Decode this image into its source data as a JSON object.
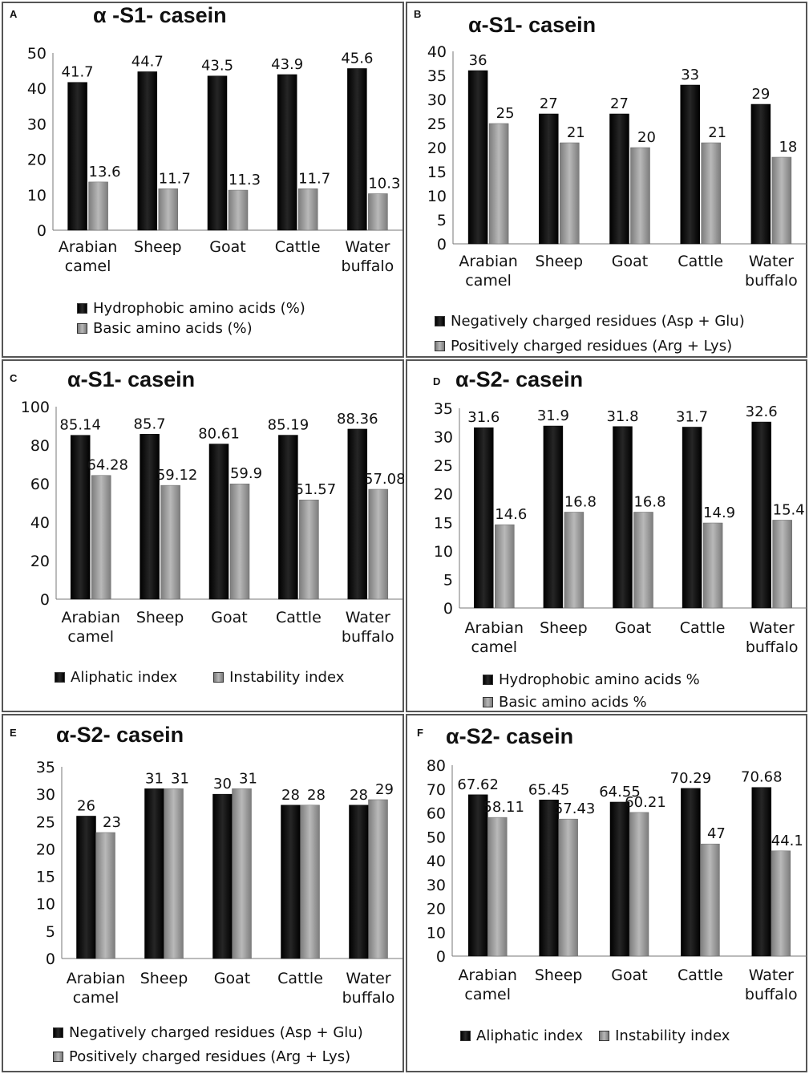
{
  "charts": [
    {
      "letter": "A",
      "title": "α -S1- casein"
    },
    {
      "letter": "B",
      "title": "α-S1- casein"
    },
    {
      "letter": "C",
      "title": "α-S1- casein"
    },
    {
      "letter": "D",
      "title": "α-S2- casein"
    },
    {
      "letter": "E",
      "title": "α-S2- casein"
    },
    {
      "letter": "F",
      "title": "α-S2- casein"
    }
  ],
  "colors": {
    "series1": "#0a0a0a",
    "series2": "#a6a6a6"
  },
  "chart_data": [
    {
      "type": "bar",
      "title": "α -S1- casein",
      "categories": [
        [
          "Arabian",
          "camel"
        ],
        [
          "Sheep"
        ],
        [
          "Goat"
        ],
        [
          "Cattle"
        ],
        [
          "Water",
          "buffalo"
        ]
      ],
      "series": [
        {
          "name": "Hydrophobic amino acids (%)",
          "values": [
            41.7,
            44.7,
            43.5,
            43.9,
            45.6
          ],
          "labels": [
            "41.7",
            "44.7",
            "43.5",
            "43.9",
            "45.6"
          ]
        },
        {
          "name": "Basic amino acids (%)",
          "values": [
            13.6,
            11.7,
            11.3,
            11.7,
            10.3
          ],
          "labels": [
            "13.6",
            "11.7",
            "11.3",
            "11.7",
            "10.3"
          ]
        }
      ],
      "ylim": [
        0,
        50
      ],
      "yticks": [
        0,
        10,
        20,
        30,
        40,
        50
      ]
    },
    {
      "type": "bar",
      "title": "α-S1- casein",
      "categories": [
        [
          "Arabian",
          "camel"
        ],
        [
          "Sheep"
        ],
        [
          "Goat"
        ],
        [
          "Cattle"
        ],
        [
          "Water",
          "buffalo"
        ]
      ],
      "series": [
        {
          "name": "Negatively charged residues  (Asp + Glu)",
          "values": [
            36,
            27,
            27,
            33,
            29
          ],
          "labels": [
            "36",
            "27",
            "27",
            "33",
            "29"
          ]
        },
        {
          "name": "Positively charged residues  (Arg + Lys)",
          "values": [
            25,
            21,
            20,
            21,
            18
          ],
          "labels": [
            "25",
            "21",
            "20",
            "21",
            "18"
          ]
        }
      ],
      "ylim": [
        0,
        40
      ],
      "yticks": [
        0,
        5,
        10,
        15,
        20,
        25,
        30,
        35,
        40
      ]
    },
    {
      "type": "bar",
      "title": "α-S1- casein",
      "categories": [
        [
          "Arabian",
          "camel"
        ],
        [
          "Sheep"
        ],
        [
          "Goat"
        ],
        [
          "Cattle"
        ],
        [
          "Water",
          "buffalo"
        ]
      ],
      "series": [
        {
          "name": "Aliphatic index",
          "values": [
            85.14,
            85.7,
            80.61,
            85.19,
            88.36
          ],
          "labels": [
            "85.14",
            "85.7",
            "80.61",
            "85.19",
            "88.36"
          ]
        },
        {
          "name": "Instability index",
          "values": [
            64.28,
            59.12,
            59.9,
            51.57,
            57.08
          ],
          "labels": [
            "64.28",
            "59.12",
            "59.9",
            "51.57",
            "57.08"
          ]
        }
      ],
      "ylim": [
        0,
        100
      ],
      "yticks": [
        0,
        20,
        40,
        60,
        80,
        100
      ]
    },
    {
      "type": "bar",
      "title": "α-S2- casein",
      "categories": [
        [
          "Arabian",
          "camel"
        ],
        [
          "Sheep"
        ],
        [
          "Goat"
        ],
        [
          "Cattle"
        ],
        [
          "Water",
          "buffalo"
        ]
      ],
      "series": [
        {
          "name": "Hydrophobic amino acids %",
          "values": [
            31.6,
            31.9,
            31.8,
            31.7,
            32.6
          ],
          "labels": [
            "31.6",
            "31.9",
            "31.8",
            "31.7",
            "32.6"
          ]
        },
        {
          "name": "Basic amino acids %",
          "values": [
            14.6,
            16.8,
            16.8,
            14.9,
            15.4
          ],
          "labels": [
            "14.6",
            "16.8",
            "16.8",
            "14.9",
            "15.4"
          ]
        }
      ],
      "ylim": [
        0,
        35
      ],
      "yticks": [
        0,
        5,
        10,
        15,
        20,
        25,
        30,
        35
      ]
    },
    {
      "type": "bar",
      "title": "α-S2- casein",
      "categories": [
        [
          "Arabian",
          "camel"
        ],
        [
          "Sheep"
        ],
        [
          "Goat"
        ],
        [
          "Cattle"
        ],
        [
          "Water",
          "buffalo"
        ]
      ],
      "series": [
        {
          "name": "Negatively charged residues  (Asp + Glu)",
          "values": [
            26,
            31,
            30,
            28,
            28
          ],
          "labels": [
            "26",
            "31",
            "30",
            "28",
            "28"
          ]
        },
        {
          "name": "Positively charged residues  (Arg + Lys)",
          "values": [
            23,
            31,
            31,
            28,
            29
          ],
          "labels": [
            "23",
            "31",
            "31",
            "28",
            "29"
          ]
        }
      ],
      "ylim": [
        0,
        35
      ],
      "yticks": [
        0,
        5,
        10,
        15,
        20,
        25,
        30,
        35
      ]
    },
    {
      "type": "bar",
      "title": "α-S2- casein",
      "categories": [
        [
          "Arabian",
          "camel"
        ],
        [
          "Sheep"
        ],
        [
          "Goat"
        ],
        [
          "Cattle"
        ],
        [
          "Water",
          "buffalo"
        ]
      ],
      "series": [
        {
          "name": "Aliphatic index",
          "values": [
            67.62,
            65.45,
            64.55,
            70.29,
            70.68
          ],
          "labels": [
            "67.62",
            "65.45",
            "64.55",
            "70.29",
            "70.68"
          ]
        },
        {
          "name": "Instability index",
          "values": [
            58.11,
            57.43,
            60.21,
            47,
            44.1
          ],
          "labels": [
            "58.11",
            "57.43",
            "60.21",
            "47",
            "44.1"
          ]
        }
      ],
      "ylim": [
        0,
        80
      ],
      "yticks": [
        0,
        10,
        20,
        30,
        40,
        50,
        60,
        70,
        80
      ]
    }
  ]
}
